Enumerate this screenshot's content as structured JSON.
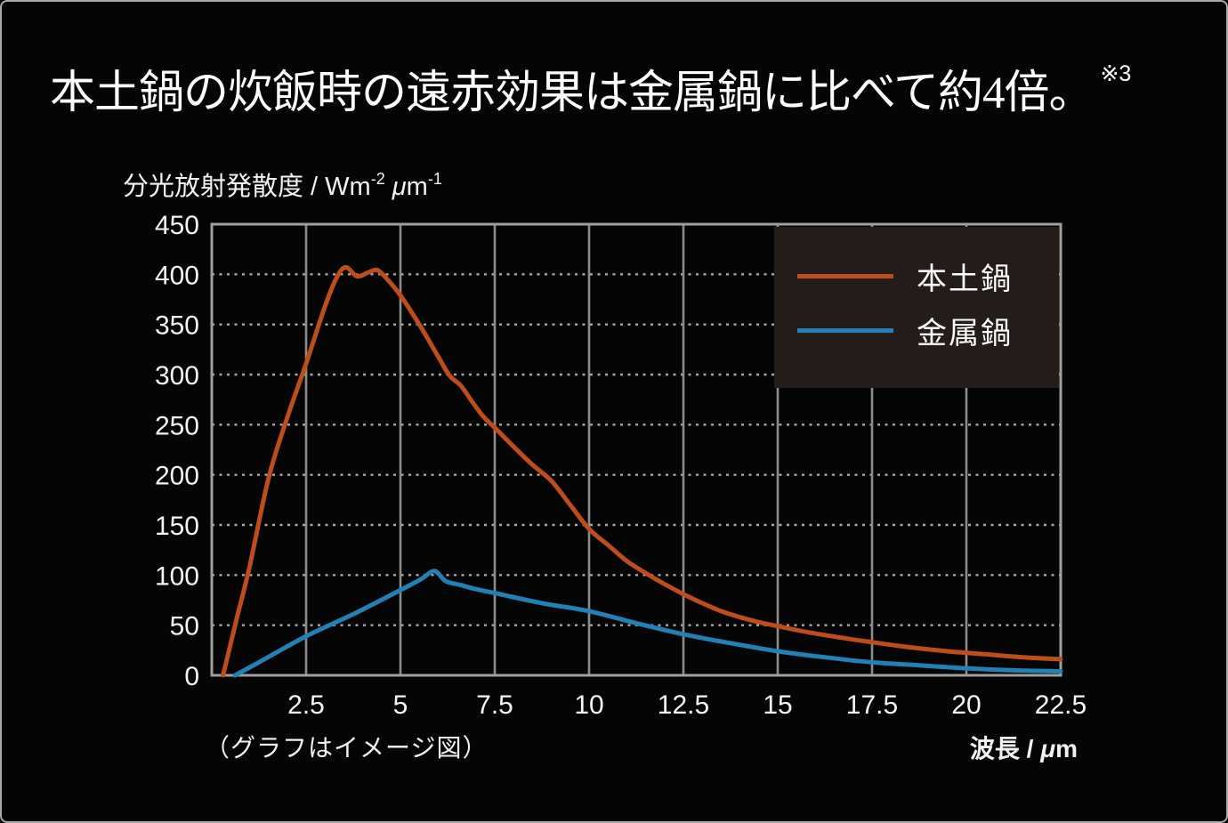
{
  "page": {
    "background": "#050505",
    "border_color": "#a9a9a9",
    "text_color": "#f5f5f5"
  },
  "title": {
    "text": "本土鍋の炊飯時の遠赤効果は金属鍋に比べて約4倍。",
    "superscript": "※3"
  },
  "y_axis_unit": {
    "prefix": "分光放射発散度 / Wm",
    "sup1": "-2",
    "mu": " μ",
    "mid": "m",
    "sup2": "-1"
  },
  "x_axis_unit": {
    "prefix": "波長 / ",
    "mu": "μ",
    "mid": "m"
  },
  "footnote": "（グラフはイメージ図）",
  "legend": {
    "background": "#241c18",
    "items": [
      {
        "label": "本土鍋",
        "color": "#bd4d1b"
      },
      {
        "label": "金属鍋",
        "color": "#2280b4"
      }
    ]
  },
  "chart_data": {
    "type": "line",
    "title": "本土鍋の炊飯時の遠赤効果は金属鍋に比べて約4倍。※3",
    "xlabel": "波長 / μm",
    "ylabel": "分光放射発散度 / Wm-2 μm-1",
    "xlim": [
      0,
      22.5
    ],
    "ylim": [
      0,
      450
    ],
    "x_ticks": [
      2.5,
      5,
      7.5,
      10,
      12.5,
      15,
      17.5,
      20,
      22.5
    ],
    "y_ticks": [
      0,
      50,
      100,
      150,
      200,
      250,
      300,
      350,
      400,
      450
    ],
    "grid": {
      "vertical": "solid",
      "horizontal": "dotted"
    },
    "grid_color": "#8c8c8c",
    "dotted_color": "#a8a8a8",
    "frame_color": "#a0a0a0",
    "tick_label_color": "#f5f5f5",
    "legend_position": "top-right",
    "series": [
      {
        "name": "本土鍋",
        "color": "#bd4d1b",
        "points": [
          [
            0.3,
            0
          ],
          [
            0.65,
            55
          ],
          [
            1.0,
            108
          ],
          [
            1.5,
            196
          ],
          [
            2.0,
            257
          ],
          [
            2.5,
            311
          ],
          [
            3.0,
            368
          ],
          [
            3.3,
            396
          ],
          [
            3.55,
            407
          ],
          [
            3.85,
            398
          ],
          [
            4.15,
            402
          ],
          [
            4.4,
            404
          ],
          [
            4.7,
            393
          ],
          [
            5.0,
            379
          ],
          [
            5.5,
            350
          ],
          [
            6.0,
            318
          ],
          [
            6.3,
            299
          ],
          [
            6.6,
            289
          ],
          [
            6.9,
            273
          ],
          [
            7.2,
            258
          ],
          [
            7.5,
            247
          ],
          [
            8.0,
            228
          ],
          [
            8.5,
            210
          ],
          [
            9.0,
            194
          ],
          [
            9.5,
            170
          ],
          [
            10.0,
            146
          ],
          [
            10.5,
            130
          ],
          [
            11.0,
            114
          ],
          [
            11.5,
            102
          ],
          [
            12.0,
            91
          ],
          [
            12.5,
            81
          ],
          [
            13.0,
            72
          ],
          [
            13.5,
            64
          ],
          [
            14.0,
            58
          ],
          [
            14.5,
            53
          ],
          [
            15.0,
            49
          ],
          [
            15.8,
            43
          ],
          [
            16.6,
            38
          ],
          [
            17.5,
            33
          ],
          [
            18.5,
            28
          ],
          [
            19.5,
            24
          ],
          [
            20.5,
            21
          ],
          [
            21.5,
            18
          ],
          [
            22.5,
            16
          ]
        ]
      },
      {
        "name": "金属鍋",
        "color": "#2280b4",
        "points": [
          [
            0.62,
            0
          ],
          [
            1.25,
            13
          ],
          [
            2.5,
            39
          ],
          [
            3.75,
            61
          ],
          [
            5.0,
            85
          ],
          [
            5.55,
            96
          ],
          [
            5.9,
            104
          ],
          [
            6.2,
            94
          ],
          [
            6.6,
            90
          ],
          [
            7.0,
            86
          ],
          [
            7.5,
            82
          ],
          [
            8.75,
            72
          ],
          [
            10.0,
            64
          ],
          [
            11.25,
            52
          ],
          [
            12.5,
            41
          ],
          [
            13.75,
            32
          ],
          [
            15.0,
            24
          ],
          [
            16.25,
            18
          ],
          [
            17.5,
            13
          ],
          [
            18.75,
            10
          ],
          [
            20.0,
            7
          ],
          [
            21.25,
            5
          ],
          [
            22.5,
            4
          ]
        ]
      }
    ]
  }
}
